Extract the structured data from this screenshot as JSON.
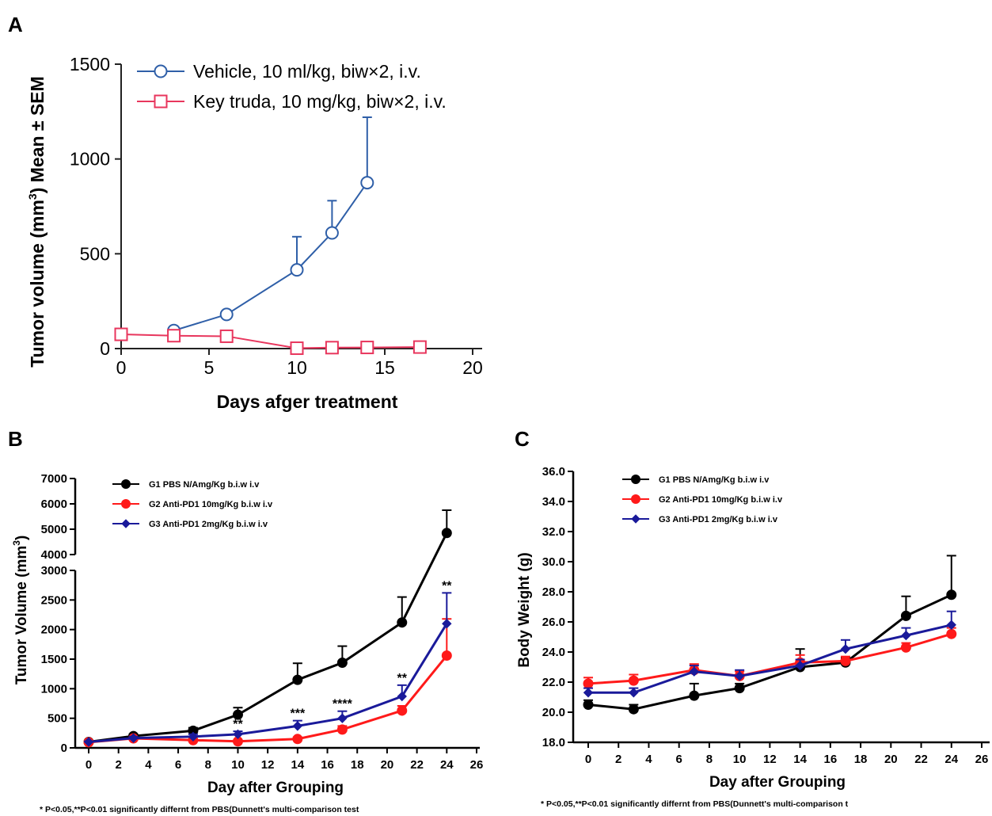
{
  "colors": {
    "vehicle": "#2f5fa8",
    "keytruda": "#e8365d",
    "g1": "#000000",
    "g2": "#ff1a1a",
    "g3": "#1a1a9a"
  },
  "chart_data": [
    {
      "panel": "A",
      "type": "line",
      "xlabel": "Days afger treatment",
      "ylabel_parts": [
        "Tumor volume (mm",
        "3",
        ") Mean ± SEM"
      ],
      "xlim": [
        0,
        20
      ],
      "ylim": [
        0,
        1500
      ],
      "xticks": [
        0,
        5,
        10,
        15,
        20
      ],
      "yticks": [
        0,
        500,
        1000,
        1500
      ],
      "legend_position": "top-right",
      "series": [
        {
          "name": "Vehicle, 10 ml/kg, biw×2, i.v.",
          "marker": "circle",
          "x": [
            3,
            6,
            10,
            12,
            14
          ],
          "y": [
            95,
            180,
            415,
            610,
            875
          ],
          "err": [
            0,
            0,
            175,
            170,
            345
          ]
        },
        {
          "name": "Key truda, 10 mg/kg, biw×2, i.v.",
          "marker": "square",
          "x": [
            0,
            3,
            6,
            10,
            12,
            14,
            17
          ],
          "y": [
            75,
            68,
            65,
            2,
            5,
            6,
            8
          ],
          "err": [
            0,
            0,
            0,
            0,
            0,
            0,
            0
          ]
        }
      ]
    },
    {
      "panel": "B",
      "type": "line",
      "xlabel": "Day after Grouping",
      "ylabel_parts": [
        "Tumor Volume (mm",
        "3",
        ")"
      ],
      "xlim": [
        0,
        26
      ],
      "xticks": [
        0,
        2,
        4,
        6,
        8,
        10,
        12,
        14,
        16,
        18,
        20,
        22,
        24,
        26
      ],
      "broken_y_axis": {
        "lower": {
          "ylim": [
            0,
            3000
          ],
          "yticks": [
            0,
            500,
            1000,
            1500,
            2000,
            2500,
            3000
          ]
        },
        "upper": {
          "ylim": [
            4000,
            7000
          ],
          "yticks": [
            4000,
            5000,
            6000,
            7000
          ]
        }
      },
      "legend_position": "top-left",
      "series": [
        {
          "name": "G1 PBS N/Amg/Kg b.i.w i.v",
          "marker": "circle",
          "x": [
            0,
            3,
            7,
            10,
            14,
            17,
            21,
            24
          ],
          "y": [
            100,
            200,
            290,
            560,
            1150,
            1440,
            2120,
            4850
          ],
          "err": [
            20,
            30,
            50,
            120,
            280,
            280,
            430,
            900
          ]
        },
        {
          "name": "G2 Anti-PD1 10mg/Kg b.i.w i.v",
          "marker": "circle",
          "x": [
            0,
            3,
            7,
            10,
            14,
            17,
            21,
            24
          ],
          "y": [
            95,
            160,
            130,
            110,
            150,
            310,
            630,
            1560
          ],
          "err": [
            10,
            20,
            20,
            20,
            30,
            60,
            80,
            620
          ]
        },
        {
          "name": "G3 Anti-PD1 2mg/Kg b.i.w i.v",
          "marker": "diamond",
          "x": [
            0,
            3,
            7,
            10,
            14,
            17,
            21,
            24
          ],
          "y": [
            100,
            165,
            190,
            230,
            370,
            500,
            870,
            2100
          ],
          "err": [
            10,
            25,
            40,
            50,
            90,
            120,
            190,
            520
          ]
        }
      ],
      "annotations": [
        {
          "text": "**",
          "x": 10
        },
        {
          "text": "***",
          "x": 14
        },
        {
          "text": "****",
          "x": 17
        },
        {
          "text": "**",
          "x": 21
        },
        {
          "text": "**",
          "x": 24
        }
      ],
      "footnote": "* P<0.05,**P<0.01 significantly differnt from PBS(Dunnett's multi-comparison test"
    },
    {
      "panel": "C",
      "type": "line",
      "xlabel": "Day after Grouping",
      "ylabel": "Body Weight (g)",
      "xlim": [
        0,
        26
      ],
      "ylim": [
        18,
        36
      ],
      "xticks": [
        0,
        2,
        4,
        6,
        8,
        10,
        12,
        14,
        16,
        18,
        20,
        22,
        24,
        26
      ],
      "yticks": [
        "18.0",
        "20.0",
        "22.0",
        "24.0",
        "26.0",
        "28.0",
        "30.0",
        "32.0",
        "34.0",
        "36.0"
      ],
      "legend_position": "top-left",
      "series": [
        {
          "name": "G1 PBS N/Amg/Kg b.i.w i.v",
          "marker": "circle",
          "x": [
            0,
            3,
            7,
            10,
            14,
            17,
            21,
            24
          ],
          "y": [
            20.5,
            20.2,
            21.1,
            21.6,
            23.0,
            23.3,
            26.4,
            27.8
          ],
          "err": [
            0.3,
            0.3,
            0.8,
            0.3,
            1.2,
            0.3,
            1.3,
            2.6
          ]
        },
        {
          "name": "G2 Anti-PD1 10mg/Kg b.i.w i.v",
          "marker": "circle",
          "x": [
            0,
            3,
            7,
            10,
            14,
            17,
            21,
            24
          ],
          "y": [
            21.9,
            22.1,
            22.8,
            22.4,
            23.3,
            23.4,
            24.3,
            25.2
          ],
          "err": [
            0.4,
            0.4,
            0.4,
            0.3,
            0.5,
            0.3,
            0.3,
            0.4
          ]
        },
        {
          "name": "G3 Anti-PD1 2mg/Kg b.i.w i.v",
          "marker": "diamond",
          "x": [
            0,
            3,
            7,
            10,
            14,
            17,
            21,
            24
          ],
          "y": [
            21.3,
            21.3,
            22.7,
            22.4,
            23.1,
            24.2,
            25.1,
            25.8
          ],
          "err": [
            0.3,
            0.3,
            0.4,
            0.4,
            0.4,
            0.6,
            0.5,
            0.9
          ]
        }
      ],
      "footnote": "* P<0.05,**P<0.01 significantly differnt from PBS(Dunnett's multi-comparison t"
    }
  ]
}
